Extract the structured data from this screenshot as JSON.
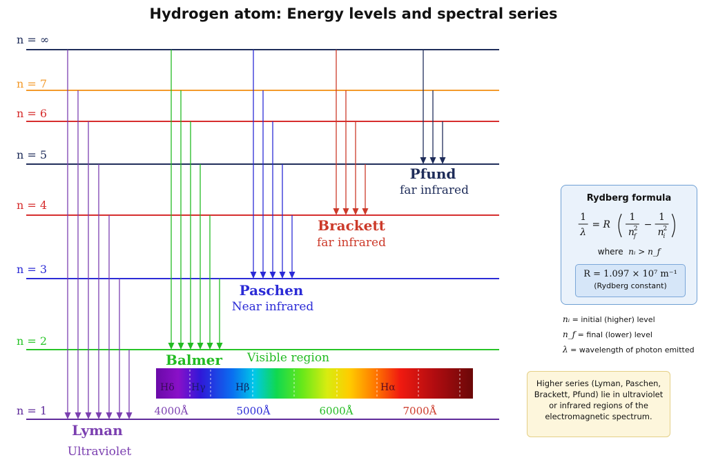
{
  "title": "Hydrogen atom: Energy levels and spectral series",
  "levels": [
    {
      "label": "n = ∞",
      "color": "#1f2d5a"
    },
    {
      "label": "n = 7",
      "color": "#f39a2b"
    },
    {
      "label": "n = 6",
      "color": "#d62d2d"
    },
    {
      "label": "n = 5",
      "color": "#1f2d5a"
    },
    {
      "label": "n = 4",
      "color": "#d62d2d"
    },
    {
      "label": "n = 3",
      "color": "#2b2bd6"
    },
    {
      "label": "n = 2",
      "color": "#27c427"
    },
    {
      "label": "n = 1",
      "color": "#5e2a9a"
    }
  ],
  "series": [
    {
      "name": "Lyman",
      "region": "Ultraviolet",
      "color": "#7b3fb0"
    },
    {
      "name": "Balmer",
      "region": "Visible region",
      "color": "#22bb22"
    },
    {
      "name": "Paschen",
      "region": "Near infrared",
      "color": "#2b2bd6"
    },
    {
      "name": "Brackett",
      "region": "far infrared",
      "color": "#cc3a2a"
    },
    {
      "name": "Pfund",
      "region": "far infrared",
      "color": "#1f2d5a"
    }
  ],
  "spectrum": {
    "lines": [
      "Hδ",
      "Hγ",
      "Hβ",
      "Hα"
    ],
    "ticks": [
      {
        "label": "4000Å",
        "color": "#7b3fb0"
      },
      {
        "label": "5000Å",
        "color": "#2b2bd6"
      },
      {
        "label": "6000Å",
        "color": "#22bb22"
      },
      {
        "label": "7000Å",
        "color": "#cc3a2a"
      }
    ]
  },
  "rydberg": {
    "title": "Rydberg formula",
    "formula_lhs_num": "1",
    "formula_lhs_den": "λ",
    "formula_eq": "= R",
    "formula_t1_num": "1",
    "formula_t1_den": "n",
    "formula_t1_sub": "f",
    "formula_minus": "−",
    "formula_t2_num": "1",
    "formula_t2_den": "n",
    "formula_t2_sub": "i",
    "formula_sup": "2",
    "where_word": "where",
    "where_condition": "nᵢ > n_f",
    "constant": "R = 1.097 × 10⁷ m⁻¹",
    "constant_label": "(Rydberg constant)"
  },
  "legend": [
    {
      "symbol": "nᵢ",
      "text": "= initial (higher) level"
    },
    {
      "symbol": "n_f",
      "text": "= final (lower) level"
    },
    {
      "symbol": "λ",
      "text": "= wavelength of photon emitted"
    }
  ],
  "note": "Higher series (Lyman, Paschen, Brackett, Pfund) lie in ultraviolet or infrared regions of the electromagnetic spectrum."
}
